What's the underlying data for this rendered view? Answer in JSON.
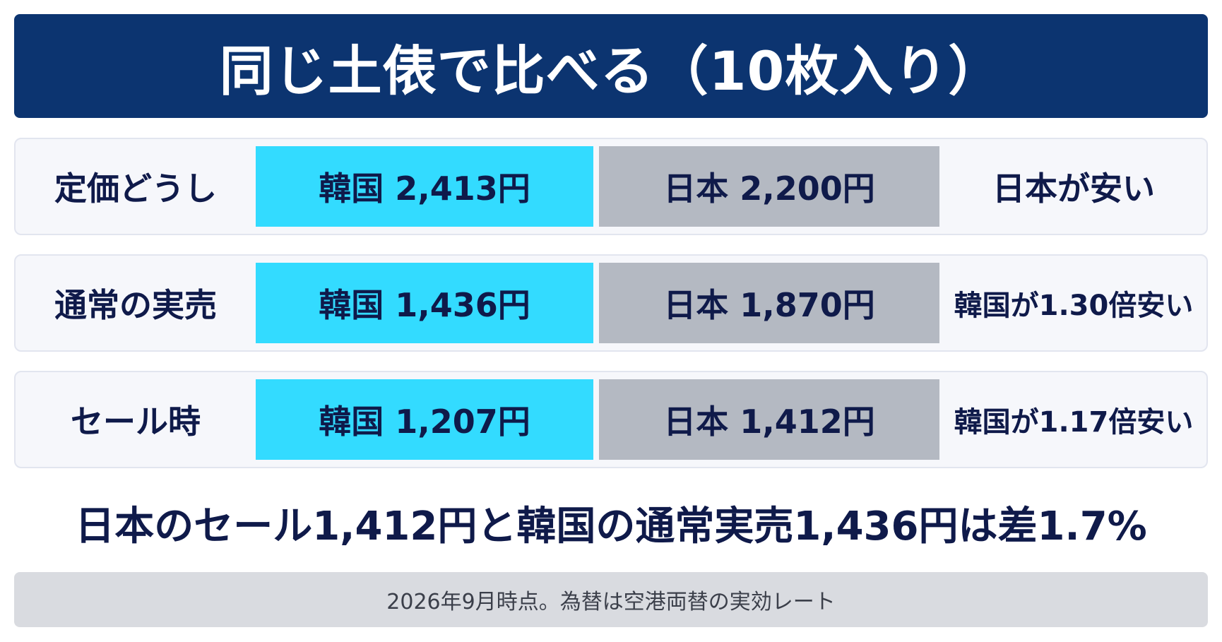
{
  "title": "同じ土俵で比べる（10枚入り）",
  "rows": [
    {
      "label": "定価どうし",
      "korea": "韓国 2,413円",
      "japan": "日本 2,200円",
      "verdict": "日本が安い"
    },
    {
      "label": "通常の実売",
      "korea": "韓国 1,436円",
      "japan": "日本 1,870円",
      "verdict": "韓国が1.30倍安い"
    },
    {
      "label": "セール時",
      "korea": "韓国 1,207円",
      "japan": "日本 1,412円",
      "verdict": "韓国が1.17倍安い"
    }
  ],
  "summary": "日本のセール1,412円と韓国の通常実売1,436円は差1.7%",
  "footnote": "2026年9月時点。為替は空港両替の実効レート",
  "colors": {
    "header_bg": "#0c3470",
    "korea_cell": "#33dbff",
    "japan_cell": "#b4b9c2",
    "text_dark": "#0f1a4a",
    "footnote_bg": "#d9dbe0"
  }
}
